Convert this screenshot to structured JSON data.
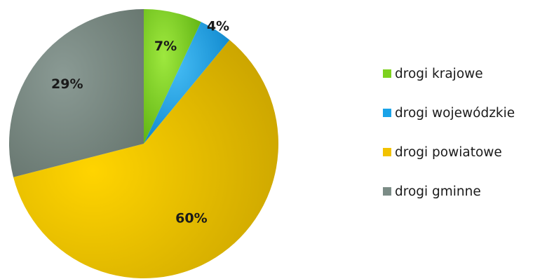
{
  "chart_data": {
    "type": "pie",
    "title": "",
    "categories": [
      "drogi krajowe",
      "drogi wojewódzkie",
      "drogi powiatowe",
      "drogi gminne"
    ],
    "values": [
      7,
      4,
      60,
      29
    ],
    "labels": [
      "7%",
      "4%",
      "60%",
      "29%"
    ],
    "colors": [
      "#7dd11f",
      "#1aa3e8",
      "#f2c200",
      "#7b8c86"
    ],
    "legend_position": "right",
    "start_angle": "12 o'clock",
    "direction": "clockwise"
  },
  "legend": {
    "items": [
      {
        "label": "drogi krajowe",
        "color": "#7dd11f"
      },
      {
        "label": "drogi wojewódzkie",
        "color": "#1aa3e8"
      },
      {
        "label": "drogi powiatowe",
        "color": "#f2c200"
      },
      {
        "label": "drogi gminne",
        "color": "#7b8c86"
      }
    ]
  }
}
